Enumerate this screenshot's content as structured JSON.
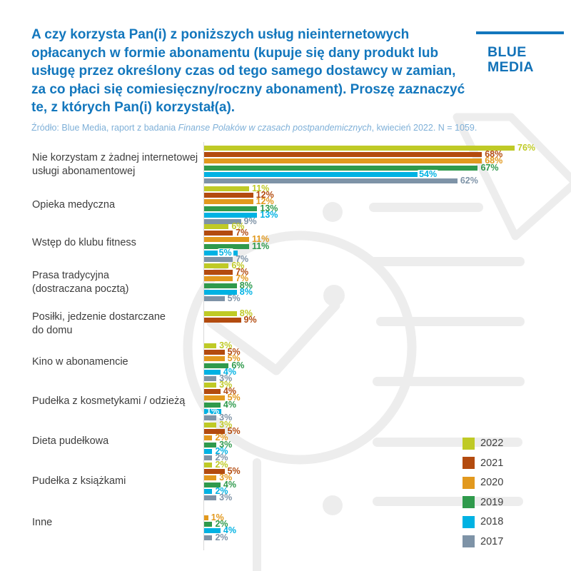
{
  "header": {
    "title": "A czy korzysta Pan(i) z poniższych usług nieinternetowych\nopłacanych w formie abonamentu (kupuje się dany produkt lub\nusługę przez określony czas od tego samego dostawcy w zamian,\nza co płaci się comiesięczny/roczny abonament). Proszę zaznaczyć\nte, z których Pan(i) korzystał(a).",
    "source_prefix": "Źródło: Blue Media, raport z badania ",
    "source_italic": "Finanse Polaków w czasach postpandemicznych",
    "source_suffix": ", kwiecień 2022. N = 1059.",
    "logo_text": "BLUE\nMEDIA",
    "brand_color": "#1377bd"
  },
  "chart_data": {
    "type": "bar",
    "orientation": "horizontal",
    "value_unit": "%",
    "xlim": [
      0,
      80
    ],
    "grid": false,
    "legend_position": "bottom-right",
    "series": [
      {
        "name": "2022",
        "color": "#bfca26"
      },
      {
        "name": "2021",
        "color": "#b34b0f"
      },
      {
        "name": "2020",
        "color": "#e2991e"
      },
      {
        "name": "2019",
        "color": "#2f9a4c"
      },
      {
        "name": "2018",
        "color": "#00b2e3"
      },
      {
        "name": "2017",
        "color": "#7e93a7"
      }
    ],
    "groups": [
      {
        "category": "Nie korzystam z żadnej internetowej\nusługi abonamentowej",
        "values": {
          "2022": 76,
          "2021": 68,
          "2020": 68,
          "2019": 67,
          "2018": 54,
          "2017": 62
        },
        "label_styles": {
          "2018": "chip"
        }
      },
      {
        "category": "Opieka medyczna",
        "values": {
          "2022": 11,
          "2021": 12,
          "2020": 12,
          "2019": 13,
          "2018": 13,
          "2017": 9
        }
      },
      {
        "category": "Wstęp do klubu fitness",
        "values": {
          "2022": 6,
          "2021": 7,
          "2020": 11,
          "2019": 11,
          "2018": 5,
          "2017": 7
        },
        "label_styles": {
          "2018": "chip"
        }
      },
      {
        "category": "Prasa tradycyjna\n(dostraczana pocztą)",
        "values": {
          "2022": 6,
          "2021": 7,
          "2020": 7,
          "2019": 8,
          "2018": 8,
          "2017": 5
        }
      },
      {
        "category": "Posiłki, jedzenie dostarczane\ndo domu",
        "values": {
          "2022": 8,
          "2021": 9
        }
      },
      {
        "category": "Kino w abonamencie",
        "values": {
          "2022": 3,
          "2021": 5,
          "2020": 5,
          "2019": 6,
          "2018": 4,
          "2017": 3
        }
      },
      {
        "category": "Pudełka z kosmetykami / odzieżą",
        "values": {
          "2022": 3,
          "2021": 4,
          "2020": 5,
          "2019": 4,
          "2018": 1,
          "2017": 3
        },
        "label_styles": {
          "2018": "inverse"
        }
      },
      {
        "category": "Dieta pudełkowa",
        "values": {
          "2022": 3,
          "2021": 5,
          "2020": 2,
          "2019": 3,
          "2018": 2,
          "2017": 2
        }
      },
      {
        "category": "Pudełka z książkami",
        "values": {
          "2022": 2,
          "2021": 5,
          "2020": 3,
          "2019": 4,
          "2018": 2,
          "2017": 3
        }
      },
      {
        "category": "Inne",
        "values": {
          "2020": 1,
          "2019": 2,
          "2018": 4,
          "2017": 2
        }
      }
    ]
  }
}
